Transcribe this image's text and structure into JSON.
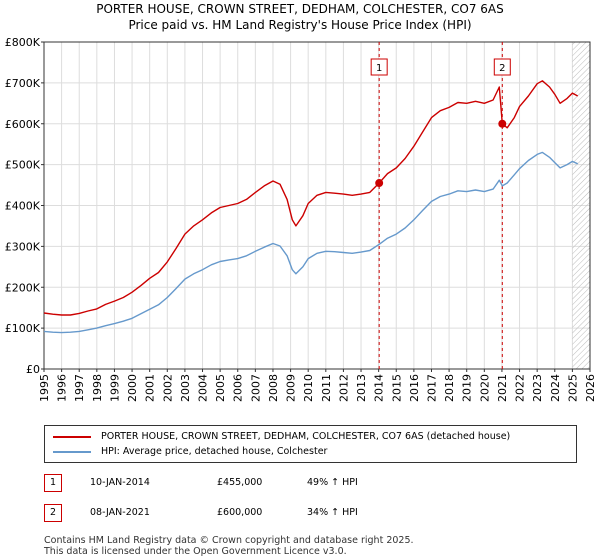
{
  "chart_data": {
    "type": "line",
    "title": "PORTER HOUSE, CROWN STREET, DEDHAM, COLCHESTER, CO7 6AS",
    "subtitle": "Price paid vs. HM Land Registry's House Price Index (HPI)",
    "xlim": [
      1995,
      2026
    ],
    "ylim": [
      0,
      800000
    ],
    "x_ticks": [
      "1995",
      "1996",
      "1997",
      "1998",
      "1999",
      "2000",
      "2001",
      "2002",
      "2003",
      "2004",
      "2005",
      "2006",
      "2007",
      "2008",
      "2009",
      "2010",
      "2011",
      "2012",
      "2013",
      "2014",
      "2015",
      "2016",
      "2017",
      "2018",
      "2019",
      "2020",
      "2021",
      "2022",
      "2023",
      "2024",
      "2025",
      "2026"
    ],
    "y_ticks": [
      {
        "value": 0,
        "label": "£0"
      },
      {
        "value": 100000,
        "label": "£100K"
      },
      {
        "value": 200000,
        "label": "£200K"
      },
      {
        "value": 300000,
        "label": "£300K"
      },
      {
        "value": 400000,
        "label": "£400K"
      },
      {
        "value": 500000,
        "label": "£500K"
      },
      {
        "value": 600000,
        "label": "£600K"
      },
      {
        "value": 700000,
        "label": "£700K"
      },
      {
        "value": 800000,
        "label": "£800K"
      }
    ],
    "series": [
      {
        "name": "PORTER HOUSE, CROWN STREET, DEDHAM, COLCHESTER, CO7 6AS (detached house)",
        "color": "#cc0000",
        "points": [
          [
            1995.0,
            137000
          ],
          [
            1995.5,
            134000
          ],
          [
            1996.0,
            132000
          ],
          [
            1996.5,
            132000
          ],
          [
            1997.0,
            136000
          ],
          [
            1997.5,
            142000
          ],
          [
            1998.0,
            147000
          ],
          [
            1998.5,
            158000
          ],
          [
            1999.0,
            166000
          ],
          [
            1999.5,
            175000
          ],
          [
            2000.0,
            188000
          ],
          [
            2000.5,
            204000
          ],
          [
            2001.0,
            222000
          ],
          [
            2001.5,
            236000
          ],
          [
            2002.0,
            262000
          ],
          [
            2002.5,
            295000
          ],
          [
            2003.0,
            330000
          ],
          [
            2003.5,
            350000
          ],
          [
            2004.0,
            365000
          ],
          [
            2004.5,
            382000
          ],
          [
            2005.0,
            395000
          ],
          [
            2005.5,
            400000
          ],
          [
            2006.0,
            405000
          ],
          [
            2006.5,
            415000
          ],
          [
            2007.0,
            432000
          ],
          [
            2007.5,
            448000
          ],
          [
            2008.0,
            460000
          ],
          [
            2008.4,
            452000
          ],
          [
            2008.8,
            415000
          ],
          [
            2009.1,
            365000
          ],
          [
            2009.3,
            350000
          ],
          [
            2009.7,
            375000
          ],
          [
            2010.0,
            405000
          ],
          [
            2010.5,
            425000
          ],
          [
            2011.0,
            432000
          ],
          [
            2011.5,
            430000
          ],
          [
            2012.0,
            428000
          ],
          [
            2012.5,
            425000
          ],
          [
            2013.0,
            428000
          ],
          [
            2013.5,
            432000
          ],
          [
            2014.03,
            455000
          ],
          [
            2014.5,
            478000
          ],
          [
            2015.0,
            492000
          ],
          [
            2015.5,
            515000
          ],
          [
            2016.0,
            545000
          ],
          [
            2016.5,
            580000
          ],
          [
            2017.0,
            615000
          ],
          [
            2017.5,
            632000
          ],
          [
            2018.0,
            640000
          ],
          [
            2018.5,
            652000
          ],
          [
            2019.0,
            650000
          ],
          [
            2019.5,
            655000
          ],
          [
            2020.0,
            650000
          ],
          [
            2020.5,
            658000
          ],
          [
            2020.85,
            690000
          ],
          [
            2021.02,
            600000
          ],
          [
            2021.3,
            590000
          ],
          [
            2021.7,
            615000
          ],
          [
            2022.0,
            642000
          ],
          [
            2022.5,
            668000
          ],
          [
            2023.0,
            698000
          ],
          [
            2023.3,
            705000
          ],
          [
            2023.7,
            690000
          ],
          [
            2024.0,
            672000
          ],
          [
            2024.3,
            650000
          ],
          [
            2024.7,
            662000
          ],
          [
            2025.0,
            675000
          ],
          [
            2025.3,
            668000
          ]
        ]
      },
      {
        "name": "HPI: Average price, detached house, Colchester",
        "color": "#6699cc",
        "points": [
          [
            1995.0,
            92000
          ],
          [
            1995.5,
            90000
          ],
          [
            1996.0,
            89000
          ],
          [
            1996.5,
            90000
          ],
          [
            1997.0,
            92000
          ],
          [
            1997.5,
            96000
          ],
          [
            1998.0,
            100000
          ],
          [
            1998.5,
            106000
          ],
          [
            1999.0,
            111000
          ],
          [
            1999.5,
            117000
          ],
          [
            2000.0,
            124000
          ],
          [
            2000.5,
            135000
          ],
          [
            2001.0,
            146000
          ],
          [
            2001.5,
            157000
          ],
          [
            2002.0,
            175000
          ],
          [
            2002.5,
            197000
          ],
          [
            2003.0,
            220000
          ],
          [
            2003.5,
            233000
          ],
          [
            2004.0,
            243000
          ],
          [
            2004.5,
            255000
          ],
          [
            2005.0,
            263000
          ],
          [
            2005.5,
            267000
          ],
          [
            2006.0,
            270000
          ],
          [
            2006.5,
            277000
          ],
          [
            2007.0,
            288000
          ],
          [
            2007.5,
            298000
          ],
          [
            2008.0,
            307000
          ],
          [
            2008.4,
            301000
          ],
          [
            2008.8,
            277000
          ],
          [
            2009.1,
            243000
          ],
          [
            2009.3,
            233000
          ],
          [
            2009.7,
            250000
          ],
          [
            2010.0,
            270000
          ],
          [
            2010.5,
            283000
          ],
          [
            2011.0,
            288000
          ],
          [
            2011.5,
            287000
          ],
          [
            2012.0,
            285000
          ],
          [
            2012.5,
            283000
          ],
          [
            2013.0,
            286000
          ],
          [
            2013.5,
            290000
          ],
          [
            2014.03,
            305000
          ],
          [
            2014.5,
            320000
          ],
          [
            2015.0,
            330000
          ],
          [
            2015.5,
            345000
          ],
          [
            2016.0,
            365000
          ],
          [
            2016.5,
            388000
          ],
          [
            2017.0,
            410000
          ],
          [
            2017.5,
            422000
          ],
          [
            2018.0,
            428000
          ],
          [
            2018.5,
            436000
          ],
          [
            2019.0,
            434000
          ],
          [
            2019.5,
            438000
          ],
          [
            2020.0,
            434000
          ],
          [
            2020.5,
            440000
          ],
          [
            2020.85,
            462000
          ],
          [
            2021.02,
            448000
          ],
          [
            2021.3,
            455000
          ],
          [
            2021.7,
            475000
          ],
          [
            2022.0,
            490000
          ],
          [
            2022.5,
            510000
          ],
          [
            2023.0,
            525000
          ],
          [
            2023.3,
            530000
          ],
          [
            2023.7,
            518000
          ],
          [
            2024.0,
            505000
          ],
          [
            2024.3,
            492000
          ],
          [
            2024.7,
            500000
          ],
          [
            2025.0,
            508000
          ],
          [
            2025.3,
            502000
          ]
        ]
      }
    ],
    "annotations": [
      {
        "label": "1",
        "x": 2014.03,
        "y": 455000
      },
      {
        "label": "2",
        "x": 2021.02,
        "y": 600000
      }
    ],
    "projection_start": 2025.0
  },
  "legend": {
    "items": [
      {
        "label": "PORTER HOUSE, CROWN STREET, DEDHAM, COLCHESTER, CO7 6AS (detached house)",
        "color": "#cc0000"
      },
      {
        "label": "HPI: Average price, detached house, Colchester",
        "color": "#6699cc"
      }
    ]
  },
  "transactions": [
    {
      "num": "1",
      "date": "10-JAN-2014",
      "price": "£455,000",
      "hpi": "49% ↑ HPI"
    },
    {
      "num": "2",
      "date": "08-JAN-2021",
      "price": "£600,000",
      "hpi": "34% ↑ HPI"
    }
  ],
  "footer": {
    "line1": "Contains HM Land Registry data © Crown copyright and database right 2025.",
    "line2": "This data is licensed under the Open Government Licence v3.0."
  }
}
